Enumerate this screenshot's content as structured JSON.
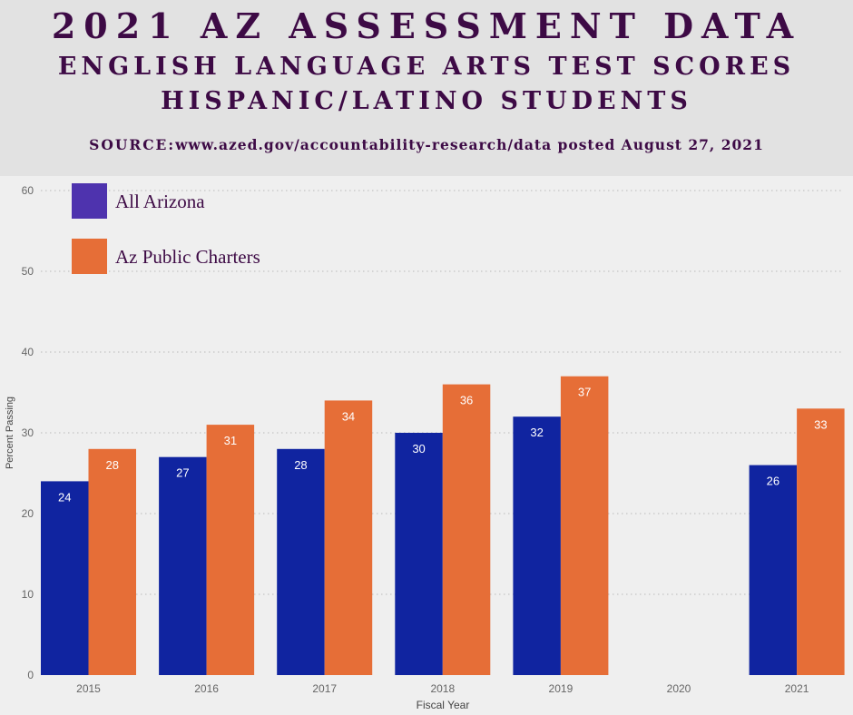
{
  "header": {
    "title_line1": "2021 AZ ASSESSMENT DATA",
    "title_line2": "ENGLISH LANGUAGE ARTS TEST SCORES",
    "title_line3": "HISPANIC/LATINO STUDENTS",
    "source_label": "SOURCE:",
    "source_text": "www.azed.gov/accountability-research/data posted August 27, 2021"
  },
  "colors": {
    "all_arizona": "#1024a0",
    "az_public_charters": "#e66e37",
    "legend_all_arizona": "#4e33ae",
    "title": "#3d0a45",
    "header_bg": "#e2e2e2",
    "plot_bg": "#efefef"
  },
  "chart_data": {
    "type": "bar",
    "categories": [
      "2015",
      "2016",
      "2017",
      "2018",
      "2019",
      "2020",
      "2021"
    ],
    "series": [
      {
        "name": "All Arizona",
        "values": [
          24,
          27,
          28,
          30,
          32,
          null,
          26
        ]
      },
      {
        "name": "Az Public Charters",
        "values": [
          28,
          31,
          34,
          36,
          37,
          null,
          33
        ]
      }
    ],
    "xlabel": "Fiscal Year",
    "ylabel": "Percent Passing",
    "ylim": [
      0,
      60
    ],
    "yticks": [
      0,
      10,
      20,
      30,
      40,
      50,
      60
    ],
    "grid": true,
    "legend": "top-left",
    "data_labels": true
  }
}
